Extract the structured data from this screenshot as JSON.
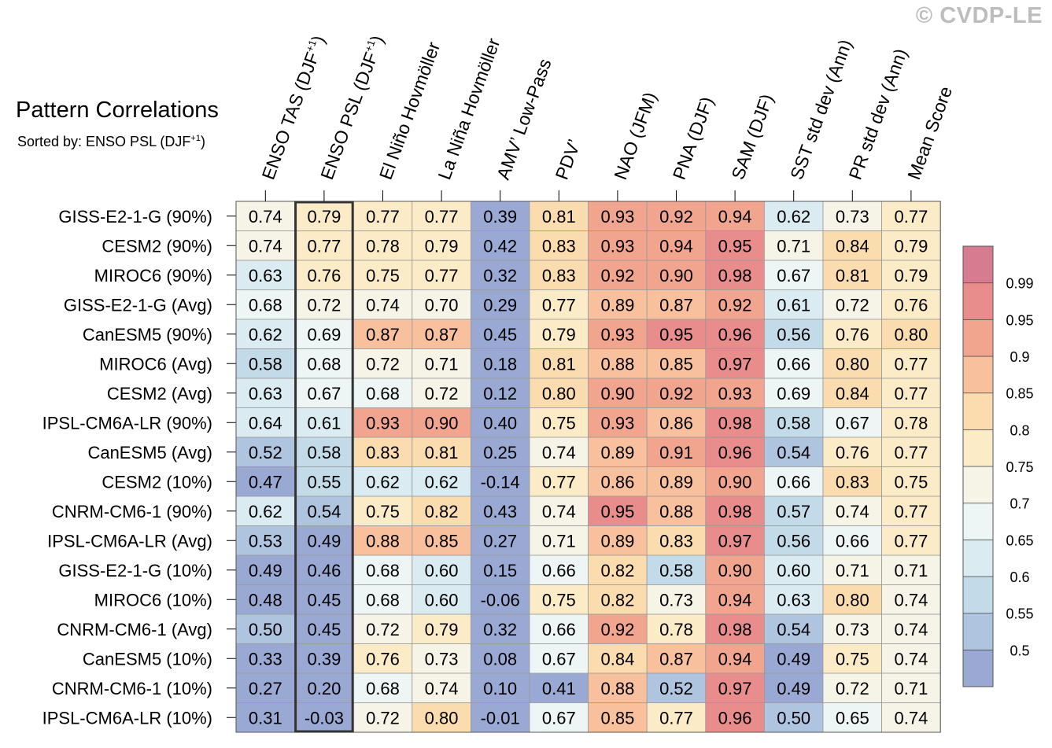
{
  "title": "Pattern Correlations",
  "subtitle": {
    "prefix": "Sorted by: ENSO PSL (DJF",
    "superscript": "+1",
    "suffix": ")"
  },
  "watermark": "© CVDP-LE",
  "chart_data": {
    "type": "heatmap",
    "columns": [
      {
        "label": "ENSO TAS (DJF",
        "sup": "+1",
        "suffix": ")"
      },
      {
        "label": "ENSO PSL (DJF",
        "sup": "+1",
        "suffix": ")"
      },
      {
        "label": "El Niño Hovmöller"
      },
      {
        "label": "La Niña Hovmöller"
      },
      {
        "label": "AMV’ Low-Pass"
      },
      {
        "label": "PDV’"
      },
      {
        "label": "NAO (JFM)"
      },
      {
        "label": "PNA (DJF)"
      },
      {
        "label": "SAM (DJF)"
      },
      {
        "label": "SST std dev (Ann)"
      },
      {
        "label": "PR std dev (Ann)"
      },
      {
        "label": "Mean Score"
      }
    ],
    "highlighted_column": 1,
    "rows": [
      {
        "label": "GISS-E2-1-G (90%)",
        "values": [
          "0.74",
          "0.79",
          "0.77",
          "0.77",
          "0.39",
          "0.81",
          "0.93",
          "0.92",
          "0.94",
          "0.62",
          "0.73",
          "0.77"
        ]
      },
      {
        "label": "CESM2 (90%)",
        "values": [
          "0.74",
          "0.77",
          "0.78",
          "0.79",
          "0.42",
          "0.83",
          "0.93",
          "0.94",
          "0.95",
          "0.71",
          "0.84",
          "0.79"
        ]
      },
      {
        "label": "MIROC6 (90%)",
        "values": [
          "0.63",
          "0.76",
          "0.75",
          "0.77",
          "0.32",
          "0.83",
          "0.92",
          "0.90",
          "0.98",
          "0.67",
          "0.81",
          "0.79"
        ]
      },
      {
        "label": "GISS-E2-1-G (Avg)",
        "values": [
          "0.68",
          "0.72",
          "0.74",
          "0.70",
          "0.29",
          "0.77",
          "0.89",
          "0.87",
          "0.92",
          "0.61",
          "0.72",
          "0.76"
        ]
      },
      {
        "label": "CanESM5 (90%)",
        "values": [
          "0.62",
          "0.69",
          "0.87",
          "0.87",
          "0.45",
          "0.79",
          "0.93",
          "0.95",
          "0.96",
          "0.56",
          "0.76",
          "0.80"
        ]
      },
      {
        "label": "MIROC6 (Avg)",
        "values": [
          "0.58",
          "0.68",
          "0.72",
          "0.71",
          "0.18",
          "0.81",
          "0.88",
          "0.85",
          "0.97",
          "0.66",
          "0.80",
          "0.77"
        ]
      },
      {
        "label": "CESM2 (Avg)",
        "values": [
          "0.63",
          "0.67",
          "0.68",
          "0.72",
          "0.12",
          "0.80",
          "0.90",
          "0.92",
          "0.93",
          "0.69",
          "0.84",
          "0.77"
        ]
      },
      {
        "label": "IPSL-CM6A-LR (90%)",
        "values": [
          "0.64",
          "0.61",
          "0.93",
          "0.90",
          "0.40",
          "0.75",
          "0.93",
          "0.86",
          "0.98",
          "0.58",
          "0.67",
          "0.78"
        ]
      },
      {
        "label": "CanESM5 (Avg)",
        "values": [
          "0.52",
          "0.58",
          "0.83",
          "0.81",
          "0.25",
          "0.74",
          "0.89",
          "0.91",
          "0.96",
          "0.54",
          "0.76",
          "0.77"
        ]
      },
      {
        "label": "CESM2 (10%)",
        "values": [
          "0.47",
          "0.55",
          "0.62",
          "0.62",
          "-0.14",
          "0.77",
          "0.86",
          "0.89",
          "0.90",
          "0.66",
          "0.83",
          "0.75"
        ]
      },
      {
        "label": "CNRM-CM6-1 (90%)",
        "values": [
          "0.62",
          "0.54",
          "0.75",
          "0.82",
          "0.43",
          "0.74",
          "0.95",
          "0.88",
          "0.98",
          "0.57",
          "0.74",
          "0.77"
        ]
      },
      {
        "label": "IPSL-CM6A-LR (Avg)",
        "values": [
          "0.53",
          "0.49",
          "0.88",
          "0.85",
          "0.27",
          "0.71",
          "0.89",
          "0.83",
          "0.97",
          "0.56",
          "0.66",
          "0.77"
        ]
      },
      {
        "label": "GISS-E2-1-G (10%)",
        "values": [
          "0.49",
          "0.46",
          "0.68",
          "0.60",
          "0.15",
          "0.66",
          "0.82",
          "0.58",
          "0.90",
          "0.60",
          "0.71",
          "0.71"
        ]
      },
      {
        "label": "MIROC6 (10%)",
        "values": [
          "0.48",
          "0.45",
          "0.68",
          "0.60",
          "-0.06",
          "0.75",
          "0.82",
          "0.73",
          "0.94",
          "0.63",
          "0.80",
          "0.74"
        ]
      },
      {
        "label": "CNRM-CM6-1 (Avg)",
        "values": [
          "0.50",
          "0.45",
          "0.72",
          "0.79",
          "0.32",
          "0.66",
          "0.92",
          "0.78",
          "0.98",
          "0.54",
          "0.73",
          "0.74"
        ]
      },
      {
        "label": "CanESM5 (10%)",
        "values": [
          "0.33",
          "0.39",
          "0.76",
          "0.73",
          "0.08",
          "0.67",
          "0.84",
          "0.87",
          "0.94",
          "0.49",
          "0.75",
          "0.74"
        ]
      },
      {
        "label": "CNRM-CM6-1 (10%)",
        "values": [
          "0.27",
          "0.20",
          "0.68",
          "0.74",
          "0.10",
          "0.41",
          "0.88",
          "0.52",
          "0.97",
          "0.49",
          "0.72",
          "0.71"
        ]
      },
      {
        "label": "IPSL-CM6A-LR (10%)",
        "values": [
          "0.31",
          "-0.03",
          "0.72",
          "0.80",
          "-0.01",
          "0.67",
          "0.85",
          "0.77",
          "0.96",
          "0.50",
          "0.65",
          "0.74"
        ]
      }
    ],
    "colorbar": {
      "levels": [
        0.5,
        0.55,
        0.6,
        0.65,
        0.7,
        0.75,
        0.8,
        0.85,
        0.9,
        0.95,
        0.99
      ],
      "tick_labels": [
        "0.5",
        "0.55",
        "0.6",
        "0.65",
        "0.7",
        "0.75",
        "0.8",
        "0.85",
        "0.9",
        "0.95",
        "0.99"
      ],
      "colors": [
        "#9aa9d3",
        "#aec4df",
        "#c3dbe9",
        "#daebf1",
        "#edf5f5",
        "#f6f4e6",
        "#fbebc7",
        "#fbdcaf",
        "#f8c09c",
        "#f1a48e",
        "#e88c8c",
        "#d77c90"
      ]
    }
  }
}
